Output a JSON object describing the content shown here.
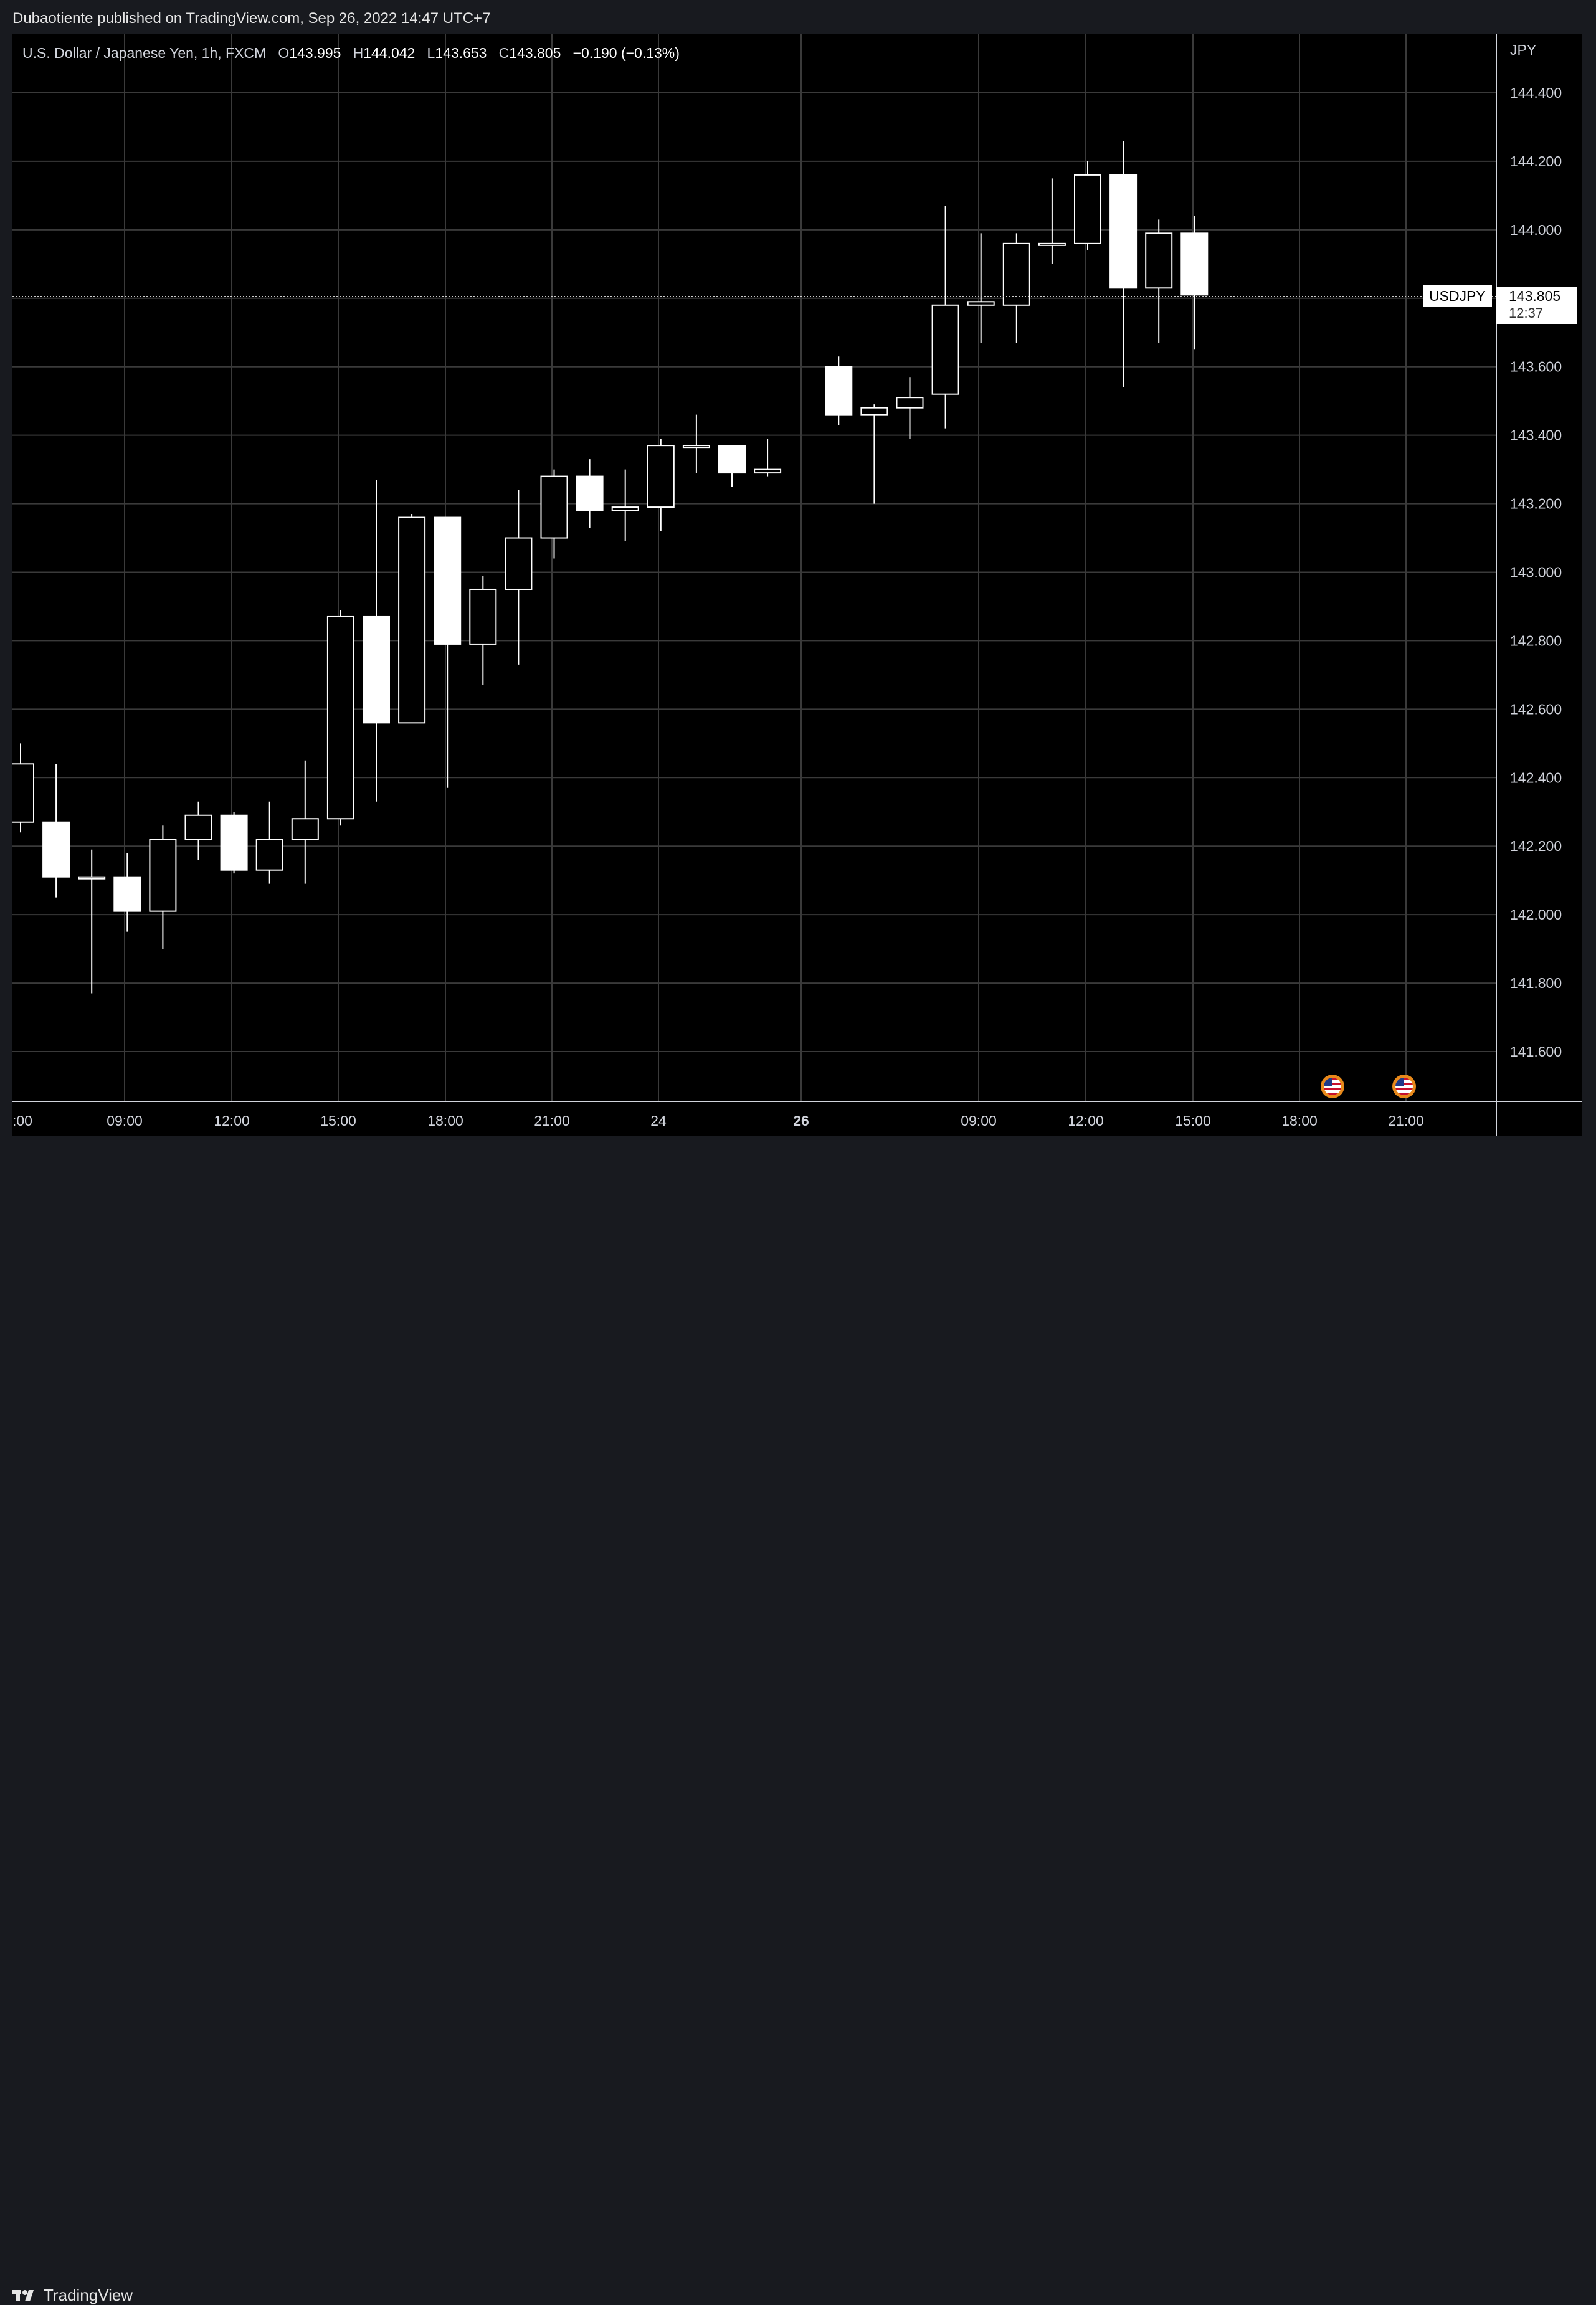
{
  "header": {
    "publish_text": "Dubaotiente published on TradingView.com, Sep 26, 2022 14:47 UTC+7"
  },
  "legend": {
    "symbol_name": "U.S. Dollar / Japanese Yen, 1h, FXCM",
    "open_label": "O",
    "open": "143.995",
    "high_label": "H",
    "high": "144.042",
    "low_label": "L",
    "low": "143.653",
    "close_label": "C",
    "close": "143.805",
    "change": "−0.190 (−0.13%)"
  },
  "price_axis": {
    "currency": "JPY",
    "ticks": [
      "144.400",
      "144.200",
      "144.000",
      "143.800",
      "143.600",
      "143.400",
      "143.200",
      "143.000",
      "142.800",
      "142.600",
      "142.400",
      "142.200",
      "142.000",
      "141.800",
      "141.600"
    ]
  },
  "last_price": {
    "symbol_tag": "USDJPY",
    "price": "143.805",
    "countdown": "12:37"
  },
  "time_axis": {
    "labels": [
      ":00",
      "09:00",
      "12:00",
      "15:00",
      "18:00",
      "21:00",
      "24",
      "26",
      "09:00",
      "12:00",
      "15:00",
      "18:00",
      "21:00"
    ]
  },
  "footer": {
    "brand": "TradingView"
  },
  "event_icons": [
    "us-flag-icon",
    "us-flag-icon"
  ],
  "colors": {
    "background": "#000000",
    "candle": "#ffffff",
    "grid": "#3a3a3a"
  },
  "chart_data": {
    "type": "candlestick",
    "title": "U.S. Dollar / Japanese Yen, 1h, FXCM",
    "ylabel": "JPY",
    "ylim": [
      141.45,
      144.57
    ],
    "x_ticks": [
      ":00",
      "09:00",
      "12:00",
      "15:00",
      "18:00",
      "21:00",
      "24",
      "26",
      "09:00",
      "12:00",
      "15:00",
      "18:00",
      "21:00"
    ],
    "candles": [
      {
        "o": 142.27,
        "h": 142.5,
        "l": 142.24,
        "c": 142.44
      },
      {
        "o": 142.27,
        "h": 142.44,
        "l": 142.05,
        "c": 142.11
      },
      {
        "o": 142.11,
        "h": 142.19,
        "l": 141.77,
        "c": 142.11
      },
      {
        "o": 142.11,
        "h": 142.18,
        "l": 141.95,
        "c": 142.01
      },
      {
        "o": 142.01,
        "h": 142.26,
        "l": 141.9,
        "c": 142.22
      },
      {
        "o": 142.22,
        "h": 142.33,
        "l": 142.16,
        "c": 142.29
      },
      {
        "o": 142.29,
        "h": 142.3,
        "l": 142.12,
        "c": 142.13
      },
      {
        "o": 142.13,
        "h": 142.33,
        "l": 142.09,
        "c": 142.22
      },
      {
        "o": 142.22,
        "h": 142.45,
        "l": 142.09,
        "c": 142.28
      },
      {
        "o": 142.28,
        "h": 142.89,
        "l": 142.26,
        "c": 142.87
      },
      {
        "o": 142.87,
        "h": 143.27,
        "l": 142.33,
        "c": 142.56
      },
      {
        "o": 142.56,
        "h": 143.17,
        "l": 142.56,
        "c": 143.16
      },
      {
        "o": 143.16,
        "h": 143.16,
        "l": 142.37,
        "c": 142.79
      },
      {
        "o": 142.79,
        "h": 142.99,
        "l": 142.67,
        "c": 142.95
      },
      {
        "o": 142.95,
        "h": 143.24,
        "l": 142.73,
        "c": 143.1
      },
      {
        "o": 143.1,
        "h": 143.3,
        "l": 143.04,
        "c": 143.28
      },
      {
        "o": 143.28,
        "h": 143.33,
        "l": 143.13,
        "c": 143.18
      },
      {
        "o": 143.18,
        "h": 143.3,
        "l": 143.09,
        "c": 143.19
      },
      {
        "o": 143.19,
        "h": 143.39,
        "l": 143.12,
        "c": 143.37
      },
      {
        "o": 143.37,
        "h": 143.46,
        "l": 143.29,
        "c": 143.37
      },
      {
        "o": 143.37,
        "h": 143.37,
        "l": 143.25,
        "c": 143.29
      },
      {
        "o": 143.29,
        "h": 143.39,
        "l": 143.28,
        "c": 143.3
      },
      {
        "o": 143.6,
        "h": 143.63,
        "l": 143.43,
        "c": 143.46
      },
      {
        "o": 143.46,
        "h": 143.49,
        "l": 143.2,
        "c": 143.48
      },
      {
        "o": 143.48,
        "h": 143.57,
        "l": 143.39,
        "c": 143.51
      },
      {
        "o": 143.52,
        "h": 144.07,
        "l": 143.42,
        "c": 143.78
      },
      {
        "o": 143.78,
        "h": 143.99,
        "l": 143.67,
        "c": 143.79
      },
      {
        "o": 143.78,
        "h": 143.99,
        "l": 143.67,
        "c": 143.96
      },
      {
        "o": 143.96,
        "h": 144.15,
        "l": 143.9,
        "c": 143.96
      },
      {
        "o": 143.96,
        "h": 144.2,
        "l": 143.94,
        "c": 144.16
      },
      {
        "o": 144.16,
        "h": 144.26,
        "l": 143.54,
        "c": 143.83
      },
      {
        "o": 143.83,
        "h": 144.03,
        "l": 143.67,
        "c": 143.99
      },
      {
        "o": 143.99,
        "h": 144.04,
        "l": 143.65,
        "c": 143.81
      }
    ]
  }
}
